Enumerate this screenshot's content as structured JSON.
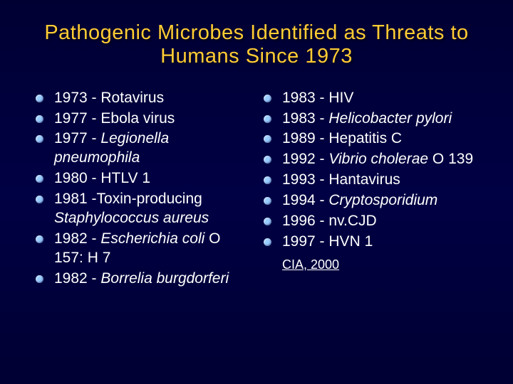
{
  "colors": {
    "background_top": "#000033",
    "background_mid": "#000044",
    "title_color": "#ffcc33",
    "text_color": "#ffffff",
    "bullet_color": "#99ccff"
  },
  "typography": {
    "title_fontsize": 29,
    "body_fontsize": 21,
    "citation_fontsize": 18,
    "font_family": "Arial"
  },
  "title": "Pathogenic Microbes Identified as Threats to Humans Since 1973",
  "left_items": [
    {
      "prefix": "1973 - ",
      "name": "Rotavirus",
      "italic": false
    },
    {
      "prefix": "1977 - ",
      "name": "Ebola virus",
      "italic": false
    },
    {
      "prefix": "1977 - ",
      "name": "Legionella pneumophila",
      "italic": true
    },
    {
      "prefix": "1980 - ",
      "name": "HTLV 1",
      "italic": false
    },
    {
      "prefix": "1981 -",
      "name_pre": "Toxin-producing ",
      "name": "Staphylococcus aureus",
      "italic": true
    },
    {
      "prefix": "1982 - ",
      "name": "Escherichia coli",
      "suffix": " O 157: H 7",
      "italic": true
    },
    {
      "prefix": "1982 - ",
      "name": "Borrelia burgdorferi",
      "italic": true
    }
  ],
  "right_items": [
    {
      "prefix": "1983 - ",
      "name": "HIV",
      "italic": false
    },
    {
      "prefix": "1983 - ",
      "name": "Helicobacter pylori",
      "italic": true
    },
    {
      "prefix": "1989 - ",
      "name": "Hepatitis C",
      "italic": false
    },
    {
      "prefix": "1992 - ",
      "name": "Vibrio cholerae",
      "suffix": " O 139",
      "italic": true
    },
    {
      "prefix": "1993 - ",
      "name": "Hantavirus",
      "italic": false
    },
    {
      "prefix": "1994 - ",
      "name": "Cryptosporidium",
      "italic": true
    },
    {
      "prefix": "1996 - ",
      "name": "nv.CJD",
      "italic": false
    },
    {
      "prefix": "1997 - ",
      "name": "HVN 1",
      "italic": false
    }
  ],
  "citation": "CIA, 2000"
}
